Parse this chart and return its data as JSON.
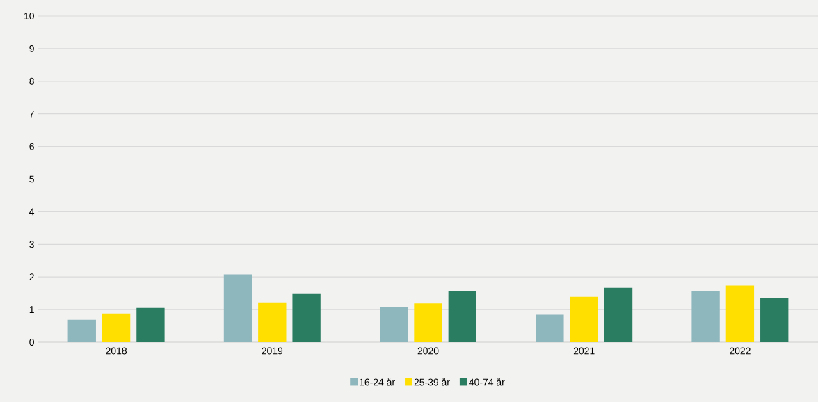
{
  "chart_data": {
    "type": "bar",
    "categories": [
      "2018",
      "2019",
      "2020",
      "2021",
      "2022"
    ],
    "series": [
      {
        "name": "16-24 år",
        "color": "#8eb6bd",
        "values": [
          0.69,
          2.08,
          1.07,
          0.84,
          1.57
        ]
      },
      {
        "name": "25-39 år",
        "color": "#ffdf00",
        "values": [
          0.88,
          1.22,
          1.19,
          1.39,
          1.74
        ]
      },
      {
        "name": "40-74 år",
        "color": "#2b7d62",
        "values": [
          1.05,
          1.5,
          1.58,
          1.67,
          1.35
        ]
      }
    ],
    "ylim": [
      0,
      10
    ],
    "yticks": [
      0,
      1,
      2,
      3,
      4,
      5,
      6,
      7,
      8,
      9,
      10
    ],
    "grid": "y",
    "legend": "bottom"
  }
}
